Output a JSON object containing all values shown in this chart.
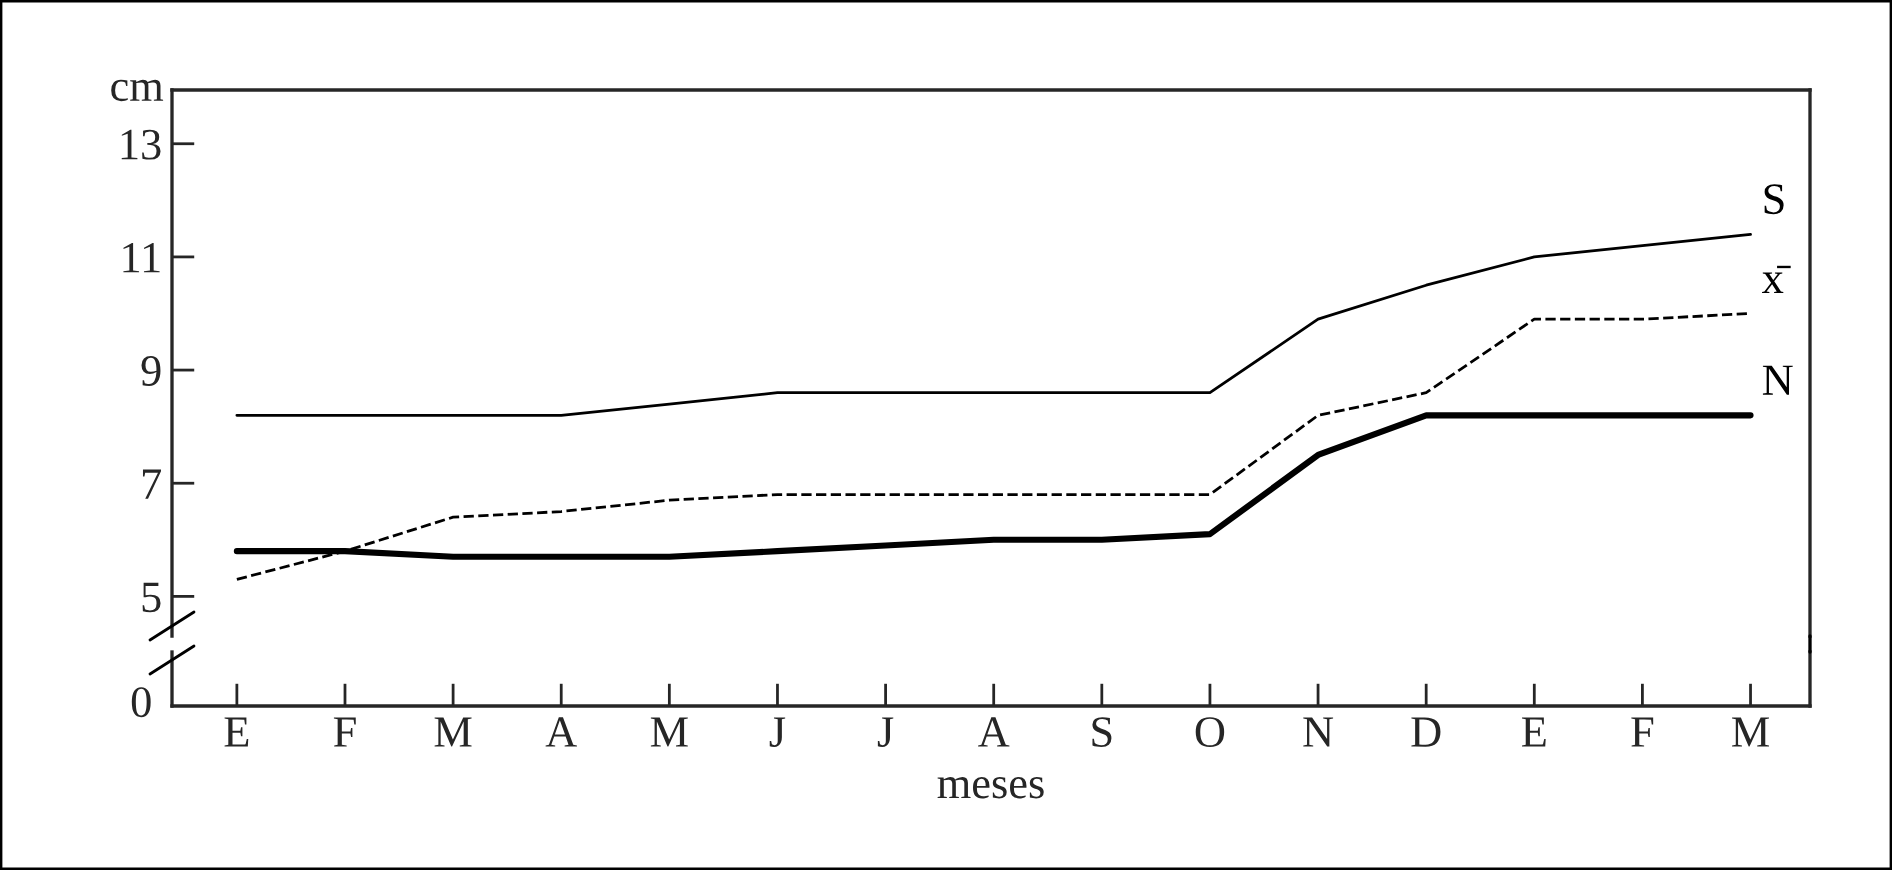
{
  "chart_data": [
    {
      "type": "line",
      "ylabel": "cm",
      "ylim": [
        4.3,
        13.95
      ],
      "yticks": [
        5,
        7,
        9,
        11,
        13
      ],
      "tick_labels": "y",
      "grid": false,
      "legend": false,
      "marker": "none",
      "series": [
        {
          "name": "S",
          "color": "#000000",
          "line_style": "solid",
          "values": [
            8.2,
            8.2,
            8.2,
            8.2,
            8.4,
            8.6,
            8.6,
            8.6,
            8.6,
            8.6,
            9.9,
            10.5,
            11.0,
            11.2,
            11.4
          ]
        },
        {
          "name": "x̄",
          "color": "#000000",
          "line_style": "dashed",
          "values": [
            5.3,
            5.8,
            6.4,
            6.5,
            6.7,
            6.8,
            6.8,
            6.8,
            6.8,
            6.8,
            8.2,
            8.6,
            9.9,
            9.9,
            10.0
          ]
        },
        {
          "name": "N",
          "color": "#000000",
          "line_style": "solid",
          "values": [
            5.8,
            5.8,
            5.7,
            5.7,
            5.7,
            5.8,
            5.9,
            6.0,
            6.0,
            6.1,
            7.5,
            8.2,
            8.2,
            8.2,
            8.2
          ]
        }
      ]
    },
    {
      "type": "other",
      "xlabel": "meses",
      "categories": [
        "E",
        "F",
        "M",
        "A",
        "M",
        "J",
        "J",
        "A",
        "S",
        "O",
        "N",
        "D",
        "E",
        "F",
        "M"
      ],
      "annotations": [
        "0"
      ]
    }
  ]
}
